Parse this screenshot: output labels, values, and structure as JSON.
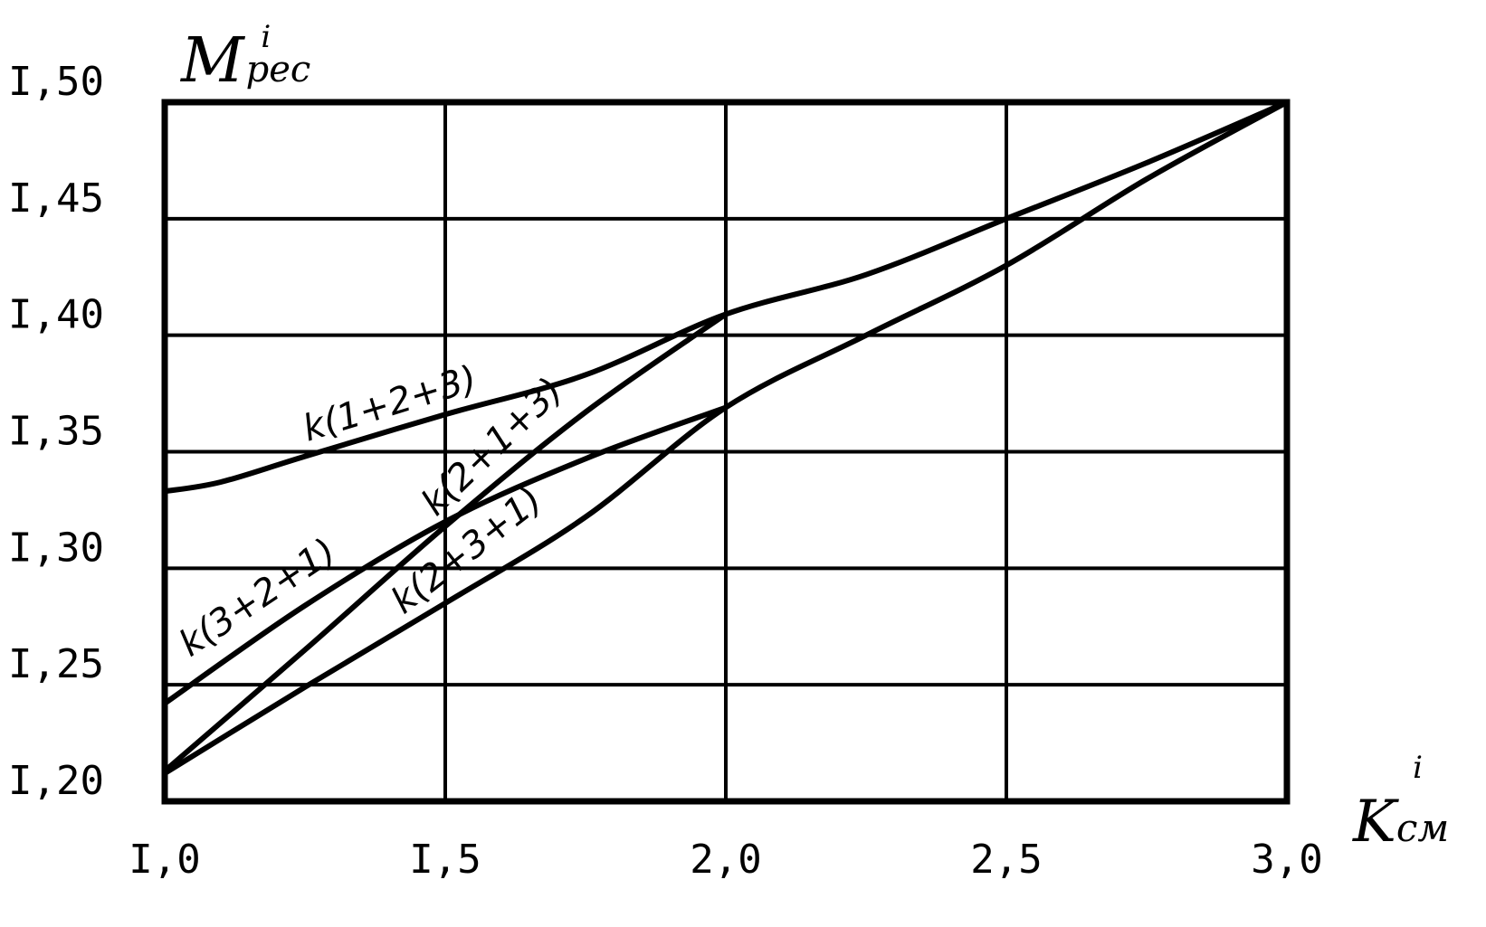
{
  "chart_data": {
    "type": "line",
    "xlabel": {
      "main": "K",
      "sub": "см",
      "sup": "i"
    },
    "ylabel": {
      "main": "M",
      "sub": "рес",
      "sup": "i"
    },
    "xlim": [
      1.0,
      3.0
    ],
    "ylim": [
      1.2,
      1.5
    ],
    "x_ticks": [
      1.0,
      1.5,
      2.0,
      2.5,
      3.0
    ],
    "y_ticks": [
      1.2,
      1.25,
      1.3,
      1.35,
      1.4,
      1.45,
      1.5
    ],
    "x_tick_labels": [
      "I,0",
      "I,5",
      "2,0",
      "2,5",
      "3,0"
    ],
    "y_tick_labels": [
      "I,20",
      "I,25",
      "I,30",
      "I,35",
      "I,40",
      "I,45",
      "I,50"
    ],
    "grid": true,
    "series": [
      {
        "name": "k(1+2+3)",
        "x": [
          1.0,
          1.1,
          1.25,
          1.5,
          1.75,
          2.0,
          2.25,
          2.5,
          2.75,
          3.0
        ],
        "y": [
          1.333,
          1.337,
          1.348,
          1.366,
          1.383,
          1.409,
          1.426,
          1.45,
          1.474,
          1.5
        ]
      },
      {
        "name": "k(2+1+3)",
        "x": [
          1.0,
          1.25,
          1.5,
          1.75,
          2.0
        ],
        "y": [
          1.213,
          1.265,
          1.318,
          1.367,
          1.409
        ]
      },
      {
        "name": "k(3+2+1)",
        "x": [
          1.0,
          1.25,
          1.5,
          1.75,
          2.0
        ],
        "y": [
          1.242,
          1.284,
          1.32,
          1.347,
          1.369
        ]
      },
      {
        "name": "k(2+3+1)",
        "x": [
          1.0,
          1.25,
          1.5,
          1.75,
          2.0,
          2.25,
          2.5,
          2.75,
          3.0
        ],
        "y": [
          1.212,
          1.249,
          1.285,
          1.322,
          1.369,
          1.4,
          1.43,
          1.467,
          1.5
        ]
      }
    ]
  }
}
